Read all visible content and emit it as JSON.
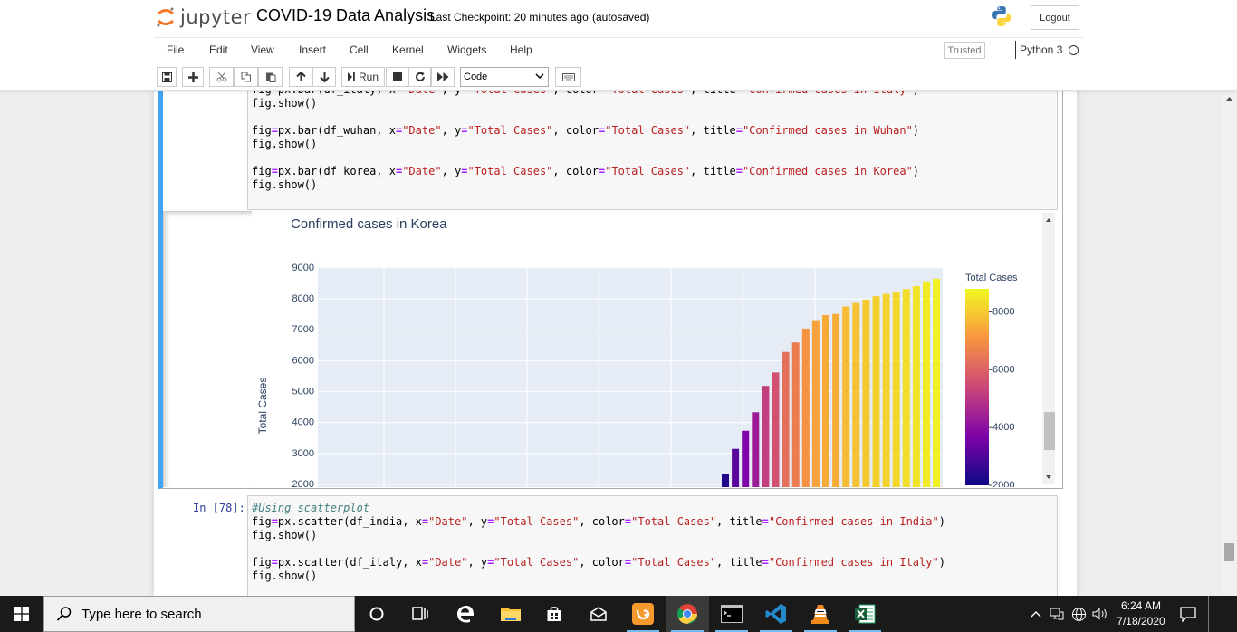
{
  "header": {
    "logo_text": "jupyter",
    "notebook_name": "COVID-19 Data Analysis",
    "checkpoint": "Last Checkpoint: 20 minutes ago",
    "autosave_status": "(autosaved)",
    "logout_label": "Logout"
  },
  "menu": {
    "items": [
      "File",
      "Edit",
      "View",
      "Insert",
      "Cell",
      "Kernel",
      "Widgets",
      "Help"
    ],
    "trusted_label": "Trusted",
    "kernel_name": "Python 3"
  },
  "toolbar": {
    "run_label": "Run",
    "cell_type": "Code"
  },
  "cell1": {
    "code_lines": [
      "fig=px.bar(df_italy, x=\"Date\", y=\"Total Cases\", color=\"Total Cases\", title=\"Confirmed cases in Italy\")",
      "fig.show()",
      "",
      "fig=px.bar(df_wuhan, x=\"Date\", y=\"Total Cases\", color=\"Total Cases\", title=\"Confirmed cases in Wuhan\")",
      "fig.show()",
      "",
      "fig=px.bar(df_korea, x=\"Date\", y=\"Total Cases\", color=\"Total Cases\", title=\"Confirmed cases in Korea\")",
      "fig.show()"
    ]
  },
  "chart_data": {
    "type": "bar",
    "title": "Confirmed cases in Korea",
    "xlabel": "",
    "ylabel": "Total Cases",
    "ylim": [
      2000,
      9000
    ],
    "yticks": [
      9000,
      8000,
      7000,
      6000,
      5000,
      4000,
      3000,
      2000
    ],
    "grid": true,
    "values": [
      2337,
      3150,
      3736,
      4335,
      5186,
      5621,
      6284,
      6593,
      7041,
      7314,
      7478,
      7513,
      7755,
      7869,
      7979,
      8086,
      8162,
      8236,
      8320,
      8413,
      8565,
      8652
    ],
    "colorbar": {
      "title": "Total Cases",
      "ticks": [
        8000,
        6000,
        4000,
        2000
      ],
      "range": [
        2000,
        8800
      ],
      "colors": [
        "#0d0887",
        "#7e03a8",
        "#cc4778",
        "#f89540",
        "#f0f921"
      ]
    }
  },
  "cell2": {
    "prompt": "In [78]:",
    "code_lines": [
      "#Using scatterplot",
      "fig=px.scatter(df_india, x=\"Date\", y=\"Total Cases\", color=\"Total Cases\", title=\"Confirmed cases in India\")",
      "fig.show()",
      "",
      "fig=px.scatter(df_italy, x=\"Date\", y=\"Total Cases\", color=\"Total Cases\", title=\"Confirmed cases in Italy\")",
      "fig.show()"
    ]
  },
  "taskbar": {
    "search_placeholder": "Type here to search",
    "time": "6:24 AM",
    "date": "7/18/2020"
  }
}
